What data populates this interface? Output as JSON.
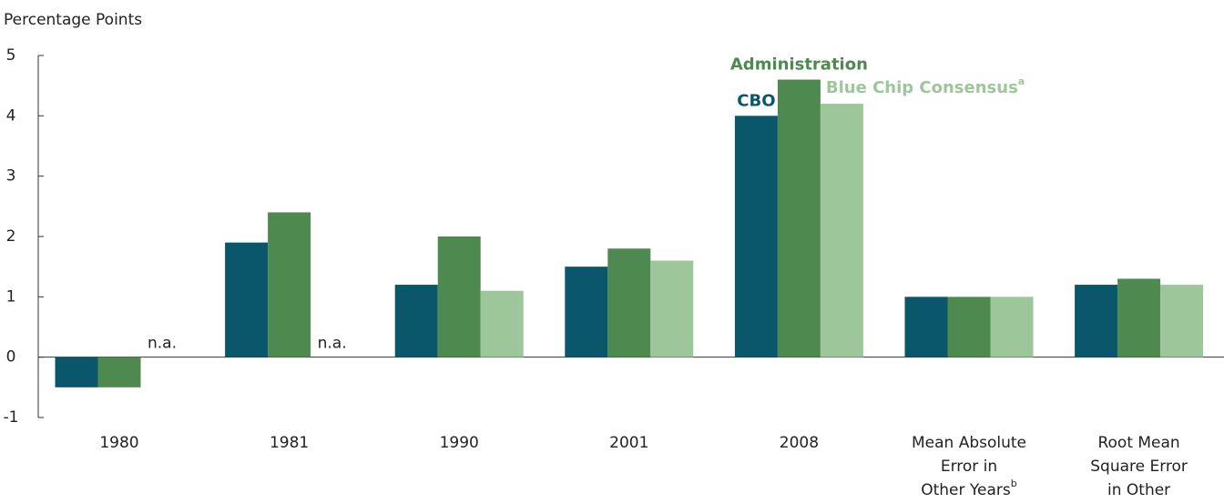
{
  "chart_data": {
    "type": "bar",
    "y_axis_title": "Percentage Points",
    "categories": [
      "1980",
      "1981",
      "1990",
      "2001",
      "2008",
      "Mean Absolute Error in Other Years",
      "Root Mean Square Error in Other Years"
    ],
    "category_footnotes": [
      null,
      null,
      null,
      null,
      null,
      "b",
      "c"
    ],
    "series": [
      {
        "name": "CBO",
        "color": "#0a566b",
        "values": [
          -0.5,
          1.9,
          1.2,
          1.5,
          4.0,
          1.0,
          1.2
        ]
      },
      {
        "name": "Administration",
        "color": "#4e8a50",
        "values": [
          -0.5,
          2.4,
          2.0,
          1.8,
          4.6,
          1.0,
          1.3
        ]
      },
      {
        "name": "Blue Chip Consensus",
        "footnote": "a",
        "color": "#9dc79b",
        "values": [
          null,
          null,
          1.1,
          1.6,
          4.2,
          1.0,
          1.2
        ],
        "value_labels": [
          "n.a.",
          "n.a.",
          null,
          null,
          null,
          null,
          null
        ]
      }
    ],
    "ylim": [
      -1,
      5
    ],
    "yticks": [
      -1,
      0,
      1,
      2,
      3,
      4,
      5
    ]
  }
}
